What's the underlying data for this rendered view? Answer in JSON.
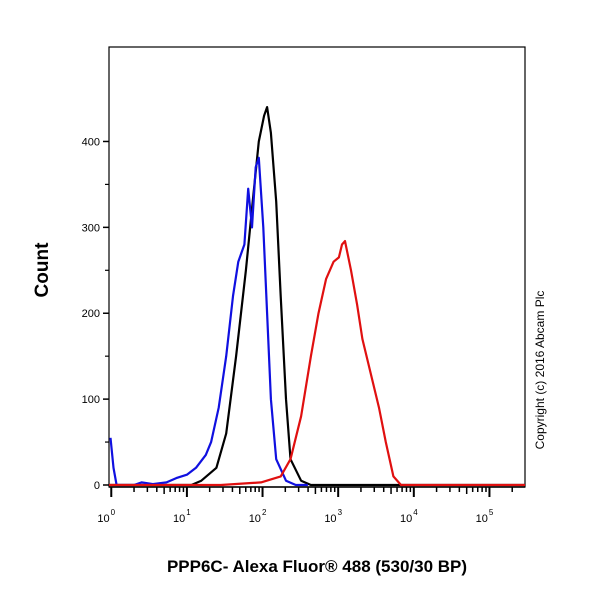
{
  "chart_data": {
    "type": "line",
    "title": "",
    "xlabel": "PPP6C- Alexa Fluor® 488 (530/30 BP)",
    "ylabel": "Count",
    "xscale": "log10",
    "xlim_log10": [
      -0.03,
      5.47
    ],
    "ylim": [
      0,
      510
    ],
    "grid": false,
    "x_ticks": [
      {
        "exp": 0,
        "label": "10",
        "sup": "0"
      },
      {
        "exp": 1,
        "label": "10",
        "sup": "1"
      },
      {
        "exp": 2,
        "label": "10",
        "sup": "2"
      },
      {
        "exp": 3,
        "label": "10",
        "sup": "3"
      },
      {
        "exp": 4,
        "label": "10",
        "sup": "4"
      },
      {
        "exp": 5,
        "label": "10",
        "sup": "5"
      }
    ],
    "y_ticks": [
      {
        "value": 0,
        "label": "0"
      },
      {
        "value": 100,
        "label": "100"
      },
      {
        "value": 200,
        "label": "200"
      },
      {
        "value": 300,
        "label": "300"
      },
      {
        "value": 400,
        "label": "400"
      }
    ],
    "annotation": "Copyright (c) 2016 Abcam Plc",
    "series": [
      {
        "name": "black",
        "color": "#000000",
        "points": [
          [
            -0.03,
            0
          ],
          [
            1.06,
            0
          ],
          [
            1.19,
            5
          ],
          [
            1.39,
            20
          ],
          [
            1.52,
            60
          ],
          [
            1.65,
            150
          ],
          [
            1.78,
            250
          ],
          [
            1.87,
            330
          ],
          [
            1.95,
            400
          ],
          [
            2.02,
            430
          ],
          [
            2.06,
            440
          ],
          [
            2.11,
            410
          ],
          [
            2.18,
            330
          ],
          [
            2.24,
            220
          ],
          [
            2.31,
            100
          ],
          [
            2.37,
            30
          ],
          [
            2.51,
            5
          ],
          [
            2.64,
            0
          ],
          [
            5.47,
            0
          ]
        ]
      },
      {
        "name": "blue",
        "color": "#1010e0",
        "points": [
          [
            -0.01,
            55
          ],
          [
            0.03,
            20
          ],
          [
            0.07,
            0
          ],
          [
            0.3,
            0
          ],
          [
            0.4,
            3
          ],
          [
            0.55,
            1
          ],
          [
            0.73,
            3
          ],
          [
            0.86,
            8
          ],
          [
            1.0,
            12
          ],
          [
            1.12,
            20
          ],
          [
            1.25,
            35
          ],
          [
            1.32,
            50
          ],
          [
            1.42,
            90
          ],
          [
            1.52,
            150
          ],
          [
            1.61,
            220
          ],
          [
            1.68,
            260
          ],
          [
            1.76,
            280
          ],
          [
            1.81,
            345
          ],
          [
            1.86,
            300
          ],
          [
            1.91,
            370
          ],
          [
            1.95,
            381
          ],
          [
            2.01,
            300
          ],
          [
            2.06,
            200
          ],
          [
            2.11,
            100
          ],
          [
            2.18,
            30
          ],
          [
            2.31,
            5
          ],
          [
            2.44,
            0
          ],
          [
            2.6,
            0
          ]
        ]
      },
      {
        "name": "red",
        "color": "#e01010",
        "points": [
          [
            -0.03,
            0
          ],
          [
            1.45,
            0
          ],
          [
            1.98,
            3
          ],
          [
            2.24,
            10
          ],
          [
            2.37,
            30
          ],
          [
            2.51,
            80
          ],
          [
            2.64,
            150
          ],
          [
            2.74,
            200
          ],
          [
            2.84,
            240
          ],
          [
            2.94,
            260
          ],
          [
            3.01,
            265
          ],
          [
            3.05,
            280
          ],
          [
            3.09,
            284
          ],
          [
            3.17,
            250
          ],
          [
            3.25,
            210
          ],
          [
            3.32,
            170
          ],
          [
            3.43,
            130
          ],
          [
            3.54,
            90
          ],
          [
            3.63,
            50
          ],
          [
            3.73,
            10
          ],
          [
            3.83,
            0
          ],
          [
            5.47,
            0
          ]
        ]
      }
    ]
  }
}
